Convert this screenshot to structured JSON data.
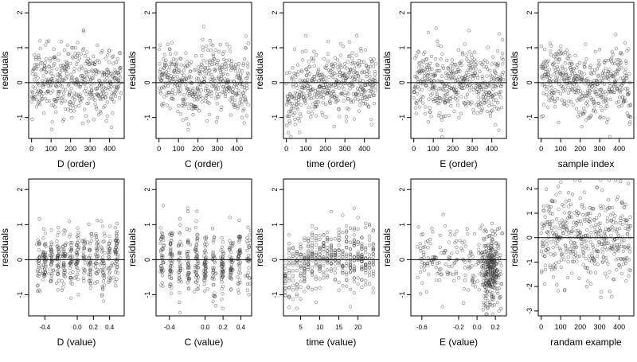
{
  "figure": {
    "ylabel": "residuals"
  },
  "chart_data": [
    {
      "type": "scatter",
      "xlabel": "D (order)",
      "ylabel": "residuals",
      "xlim": [
        -15,
        475
      ],
      "ylim": [
        -1.6,
        2.3
      ],
      "xticks": [
        0,
        100,
        200,
        300,
        400
      ],
      "yticks": [
        -1,
        0,
        1,
        2
      ],
      "hline": 0,
      "grid": false,
      "point_style": "open circle",
      "n_points": 460,
      "pattern": "order",
      "seed": 11
    },
    {
      "type": "scatter",
      "xlabel": "C (order)",
      "ylabel": "residuals",
      "xlim": [
        -15,
        475
      ],
      "ylim": [
        -1.6,
        2.3
      ],
      "xticks": [
        0,
        100,
        200,
        300,
        400
      ],
      "yticks": [
        -1,
        0,
        1,
        2
      ],
      "hline": 0,
      "grid": false,
      "point_style": "open circle",
      "n_points": 460,
      "pattern": "order",
      "seed": 23
    },
    {
      "type": "scatter",
      "xlabel": "time (order)",
      "ylabel": "residuals",
      "xlim": [
        -15,
        475
      ],
      "ylim": [
        -1.6,
        2.3
      ],
      "xticks": [
        0,
        100,
        200,
        300,
        400
      ],
      "yticks": [
        -1,
        0,
        1,
        2
      ],
      "hline": 0,
      "grid": false,
      "point_style": "open circle",
      "n_points": 460,
      "pattern": "time_order",
      "seed": 37
    },
    {
      "type": "scatter",
      "xlabel": "E (order)",
      "ylabel": "residuals",
      "xlim": [
        -15,
        475
      ],
      "ylim": [
        -1.6,
        2.3
      ],
      "xticks": [
        0,
        100,
        200,
        300,
        400
      ],
      "yticks": [
        -1,
        0,
        1,
        2
      ],
      "hline": 0,
      "grid": false,
      "point_style": "open circle",
      "n_points": 460,
      "pattern": "order",
      "seed": 41
    },
    {
      "type": "scatter",
      "xlabel": "sample index",
      "ylabel": "residuals",
      "xlim": [
        -15,
        475
      ],
      "ylim": [
        -1.6,
        2.3
      ],
      "xticks": [
        0,
        100,
        200,
        300,
        400
      ],
      "yticks": [
        -1,
        0,
        1,
        2
      ],
      "hline": 0,
      "grid": false,
      "point_style": "open circle",
      "n_points": 460,
      "pattern": "index",
      "seed": 53
    },
    {
      "type": "scatter",
      "xlabel": "D (value)",
      "ylabel": "residuals",
      "xlim": [
        -0.6,
        0.58
      ],
      "ylim": [
        -1.6,
        2.3
      ],
      "xticks": [
        -0.4,
        0.0,
        0.2,
        0.4
      ],
      "xtick_labels": [
        "-0.4",
        "0.0",
        "0.2",
        "0.4"
      ],
      "yticks": [
        -1,
        0,
        1,
        2
      ],
      "hline": 0,
      "grid": false,
      "point_style": "open circle",
      "n_points": 460,
      "pattern": "value_D",
      "seed": 61
    },
    {
      "type": "scatter",
      "xlabel": "C (value)",
      "ylabel": "residuals",
      "xlim": [
        -0.55,
        0.52
      ],
      "ylim": [
        -1.6,
        2.3
      ],
      "xticks": [
        -0.4,
        0.0,
        0.2,
        0.4
      ],
      "xtick_labels": [
        "-0.4",
        "0.0",
        "0.2",
        "0.4"
      ],
      "yticks": [
        -1,
        0,
        1,
        2
      ],
      "hline": 0,
      "grid": false,
      "point_style": "open circle",
      "n_points": 460,
      "pattern": "value_C",
      "seed": 71
    },
    {
      "type": "scatter",
      "xlabel": "time (value)",
      "ylabel": "residuals",
      "xlim": [
        0.5,
        25.5
      ],
      "ylim": [
        -1.6,
        2.3
      ],
      "xticks": [
        5,
        10,
        15,
        20
      ],
      "xtick_labels": [
        "5",
        "10",
        "15",
        "20"
      ],
      "yticks": [
        -1,
        0,
        1,
        2
      ],
      "hline": 0,
      "grid": false,
      "point_style": "open circle",
      "n_points": 460,
      "pattern": "value_time",
      "seed": 79
    },
    {
      "type": "scatter",
      "xlabel": "E (value)",
      "ylabel": "residuals",
      "xlim": [
        -0.72,
        0.32
      ],
      "ylim": [
        -1.6,
        2.3
      ],
      "xticks": [
        -0.6,
        -0.2,
        0.0,
        0.2
      ],
      "xtick_labels": [
        "-0.6",
        "-0.2",
        "0.0",
        "0.2"
      ],
      "yticks": [
        -1,
        0,
        1,
        2
      ],
      "hline": 0,
      "grid": false,
      "point_style": "open circle",
      "n_points": 460,
      "pattern": "value_E",
      "seed": 89
    },
    {
      "type": "scatter",
      "xlabel": "randam example",
      "ylabel": "residuals",
      "xlim": [
        -15,
        475
      ],
      "ylim": [
        -3.2,
        2.4
      ],
      "xticks": [
        0,
        100,
        200,
        300,
        400
      ],
      "yticks": [
        -3,
        -2,
        -1,
        0,
        1,
        2
      ],
      "hline": 0,
      "grid": false,
      "point_style": "open circle",
      "n_points": 460,
      "pattern": "random",
      "seed": 97
    }
  ]
}
